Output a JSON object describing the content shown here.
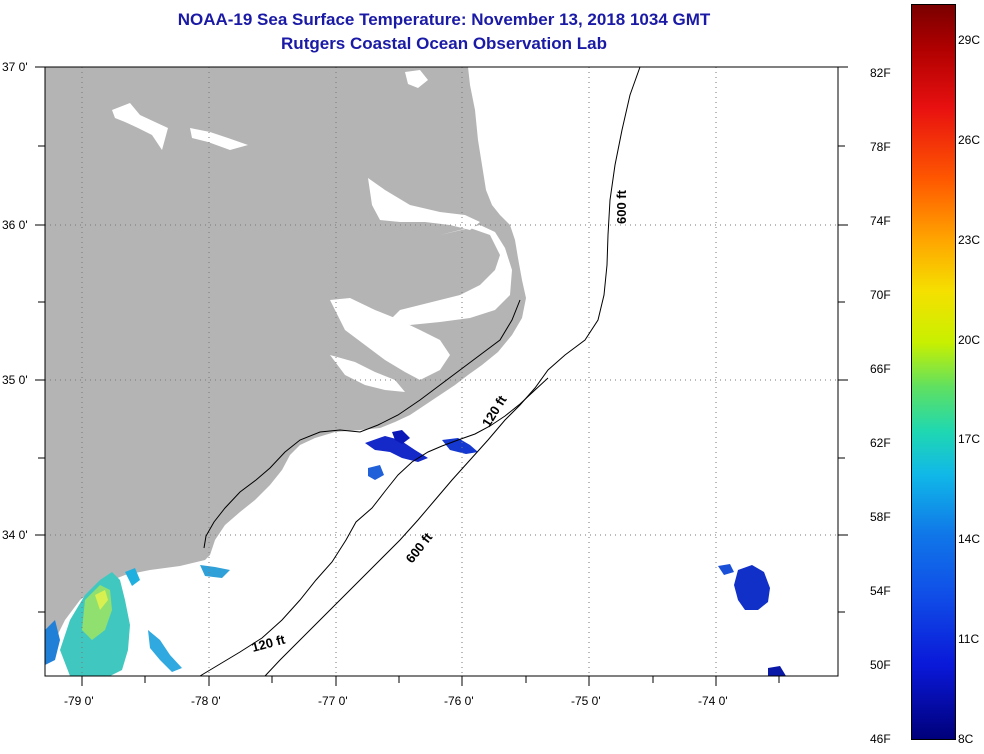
{
  "title": {
    "line1": "NOAA-19 Sea Surface Temperature:  November 13, 2018 1034 GMT",
    "line2": "Rutgers Coastal Ocean Observation Lab"
  },
  "axes": {
    "lat_labels": [
      "37 0'",
      "36 0'",
      "35 0'",
      "34 0'"
    ],
    "lon_labels": [
      "-79 0'",
      "-78 0'",
      "-77 0'",
      "-76 0'",
      "-75 0'",
      "-74 0'"
    ]
  },
  "contours": {
    "c600_north": "600 ft",
    "c120_mid": "120 ft",
    "c600_mid": "600 ft",
    "c120_south": "120 ft"
  },
  "colorbar": {
    "fahrenheit": [
      "82F",
      "78F",
      "74F",
      "70F",
      "66F",
      "62F",
      "58F",
      "54F",
      "50F",
      "46F"
    ],
    "celsius": [
      "29C",
      "26C",
      "23C",
      "20C",
      "17C",
      "14C",
      "11C",
      "8C"
    ],
    "min": "46F / 8C",
    "max": "~86F / 30C"
  },
  "colors": {
    "land": "#b4b4b4",
    "title": "#1a1aa6",
    "cold": "#0a18d8"
  }
}
